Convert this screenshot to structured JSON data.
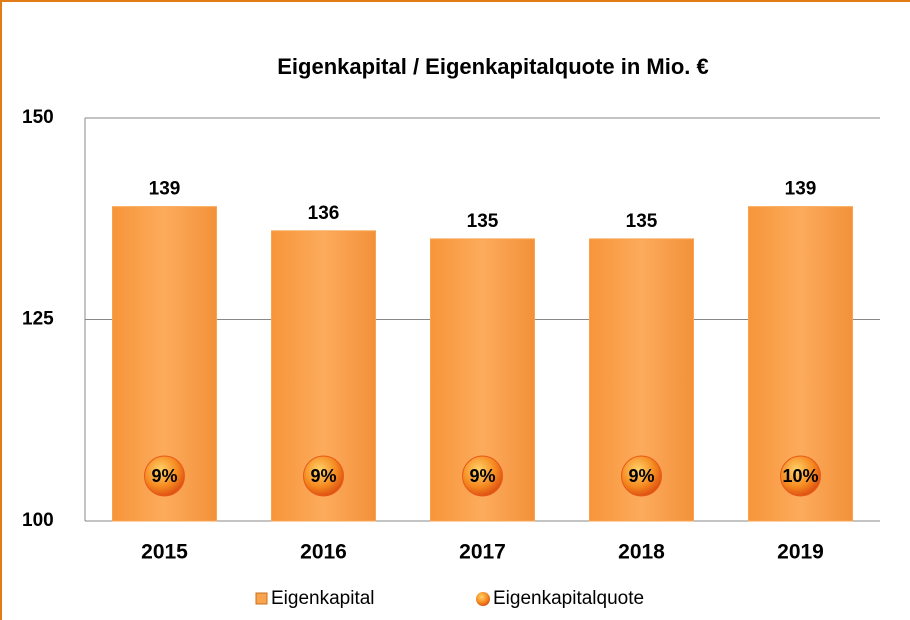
{
  "chart_data": {
    "type": "bar",
    "title": "Eigenkapital / Eigenkapitalquote in Mio. €",
    "categories": [
      "2015",
      "2016",
      "2017",
      "2018",
      "2019"
    ],
    "series": [
      {
        "name": "Eigenkapital",
        "color": "#f9a34f",
        "values": [
          139,
          136,
          135,
          135,
          139
        ]
      },
      {
        "name": "Eigenkapitalquote",
        "color": "#e8591a",
        "values": [
          9,
          9,
          9,
          9,
          10
        ],
        "value_labels": [
          "9%",
          "9%",
          "9%",
          "9%",
          "10%"
        ]
      }
    ],
    "ylim": [
      100,
      150
    ],
    "yticks": [
      100,
      125,
      150
    ],
    "grid": true,
    "legend": "bottom"
  }
}
